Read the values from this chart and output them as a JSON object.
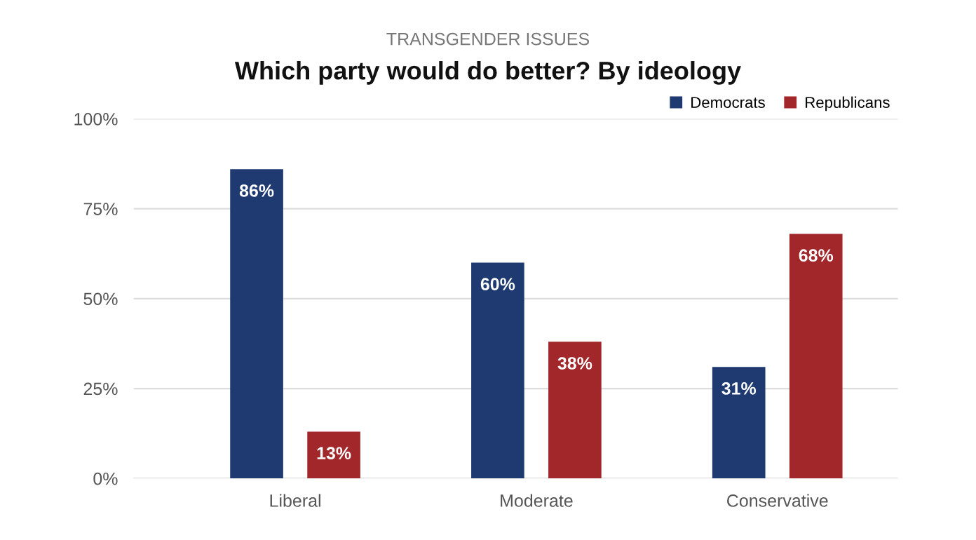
{
  "chart_data": {
    "type": "bar",
    "subtitle": "TRANSGENDER ISSUES",
    "title": "Which party would do better? By ideology",
    "categories": [
      "Liberal",
      "Moderate",
      "Conservative"
    ],
    "series": [
      {
        "name": "Democrats",
        "color": "#1f3a70",
        "values": [
          86,
          60,
          31
        ],
        "value_labels": [
          "86%",
          "60%",
          "31%"
        ]
      },
      {
        "name": "Republicans",
        "color": "#a1272b",
        "values": [
          13,
          38,
          68
        ],
        "value_labels": [
          "13%",
          "38%",
          "68%"
        ]
      }
    ],
    "ylim": [
      0,
      100
    ],
    "yticks": [
      {
        "value": 0,
        "label": "0%"
      },
      {
        "value": 25,
        "label": "25%"
      },
      {
        "value": 50,
        "label": "50%"
      },
      {
        "value": 75,
        "label": "75%"
      },
      {
        "value": 100,
        "label": "100%"
      }
    ],
    "grid": "y",
    "legend": "top right"
  }
}
